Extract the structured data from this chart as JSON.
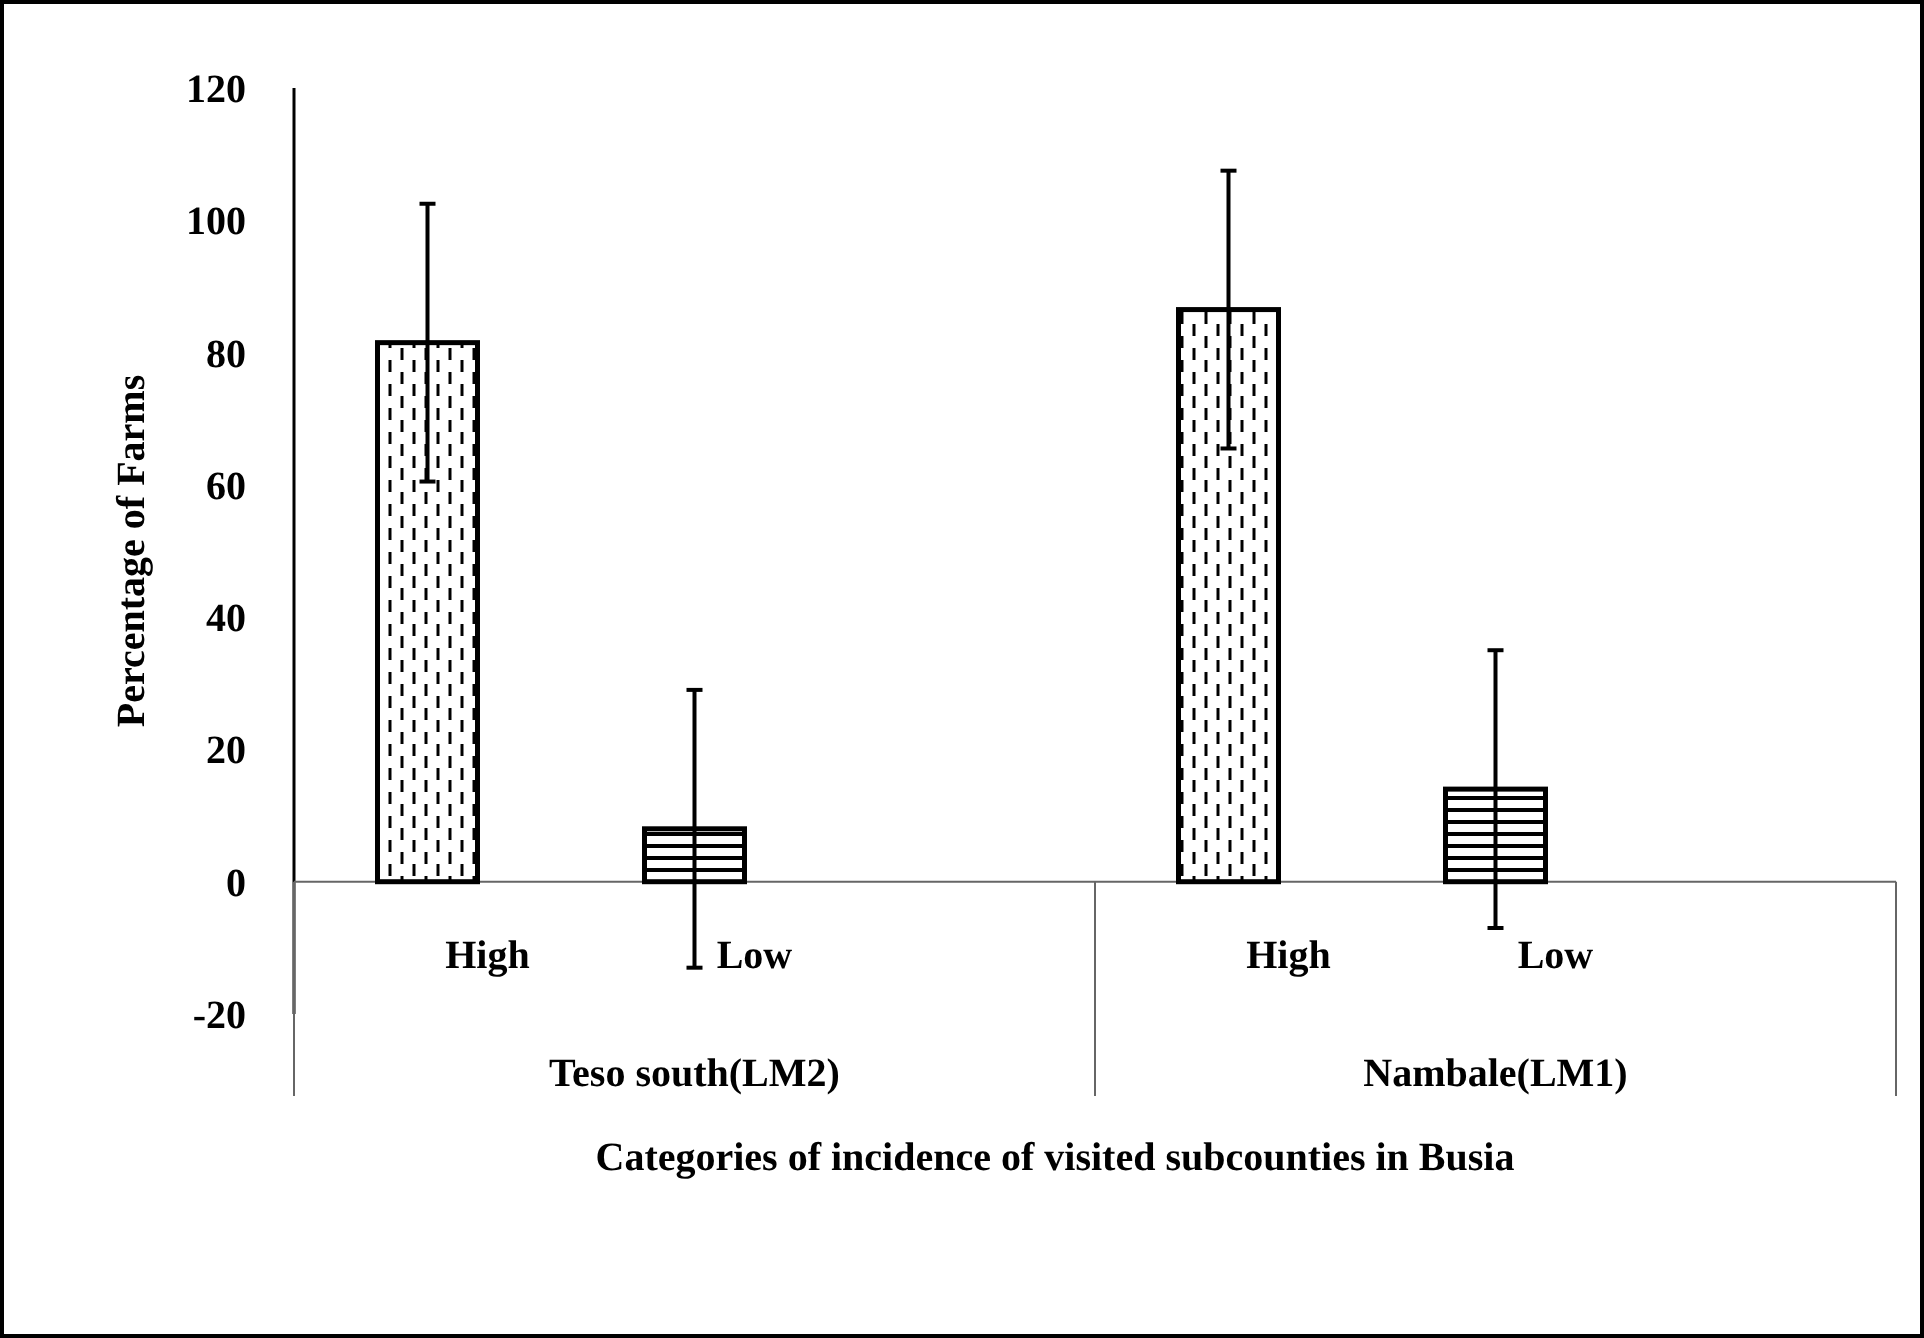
{
  "chart_data": {
    "type": "bar",
    "xlabel": "Categories of incidence of visited subcounties in Busia",
    "ylabel": "Percentage of Farms",
    "categories": [
      "High",
      "Low",
      null,
      "High",
      "Low",
      null
    ],
    "values": [
      81.5,
      8,
      null,
      86.5,
      14,
      null
    ],
    "errors": [
      21,
      21,
      null,
      21,
      21,
      null
    ],
    "colors": [
      "#000000",
      "#000000",
      null,
      "#000000",
      "#000000",
      null
    ],
    "ylim": [
      -20,
      120
    ],
    "yticks": [
      -20,
      0,
      20,
      40,
      60,
      80,
      100,
      120
    ],
    "annotations": [
      "Teso south(LM2)",
      "Nambale(LM1)"
    ],
    "grid": false
  }
}
